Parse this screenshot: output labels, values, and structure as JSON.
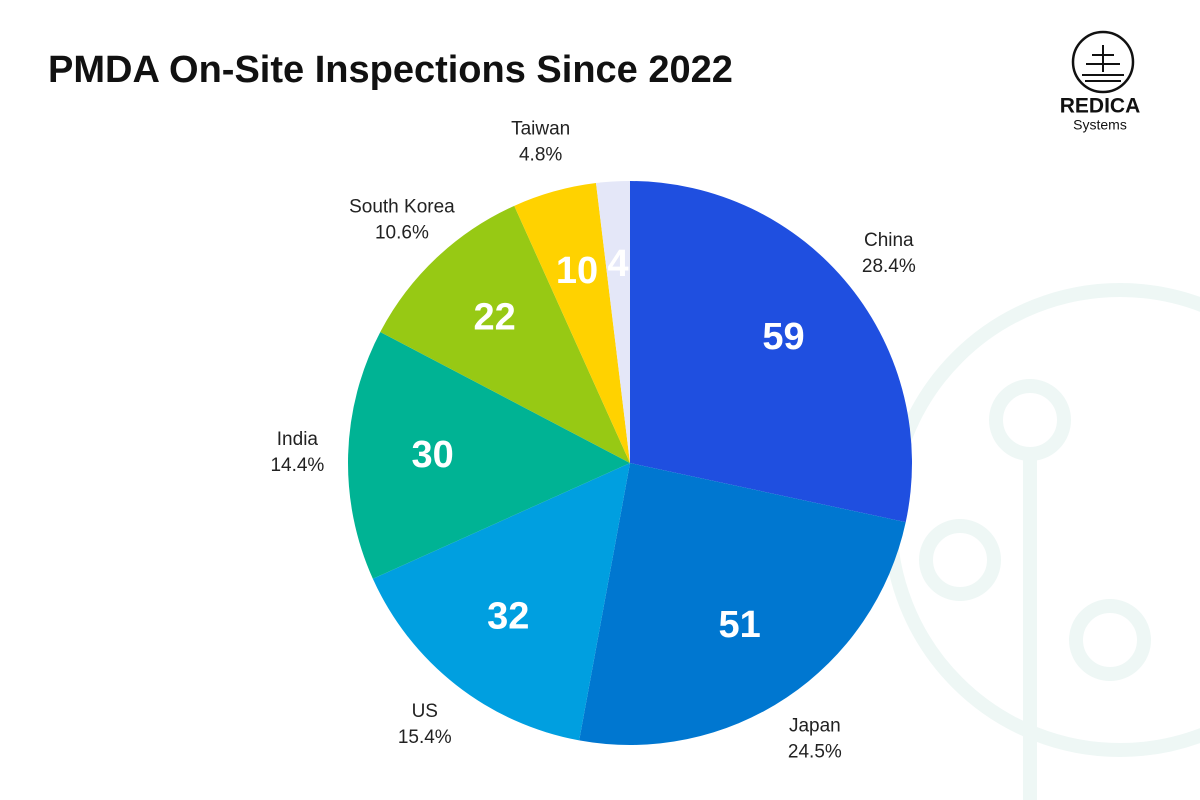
{
  "chart_data": {
    "type": "pie",
    "title": "PMDA On-Site Inspections Since 2022",
    "categories": [
      "China",
      "Japan",
      "US",
      "India",
      "South Korea",
      "Taiwan",
      null
    ],
    "values": [
      59,
      51,
      32,
      30,
      22,
      10,
      4
    ],
    "percent_labels": [
      "28.4%",
      "24.5%",
      "15.4%",
      "14.4%",
      "10.6%",
      "4.8%",
      null
    ],
    "colors": [
      "#1f4fe0",
      "#0077d0",
      "#009fe0",
      "#00b394",
      "#97c914",
      "#ffd200",
      "#e4e7f8"
    ]
  },
  "logo": {
    "name": "REDICA",
    "subtitle": "Systems"
  }
}
